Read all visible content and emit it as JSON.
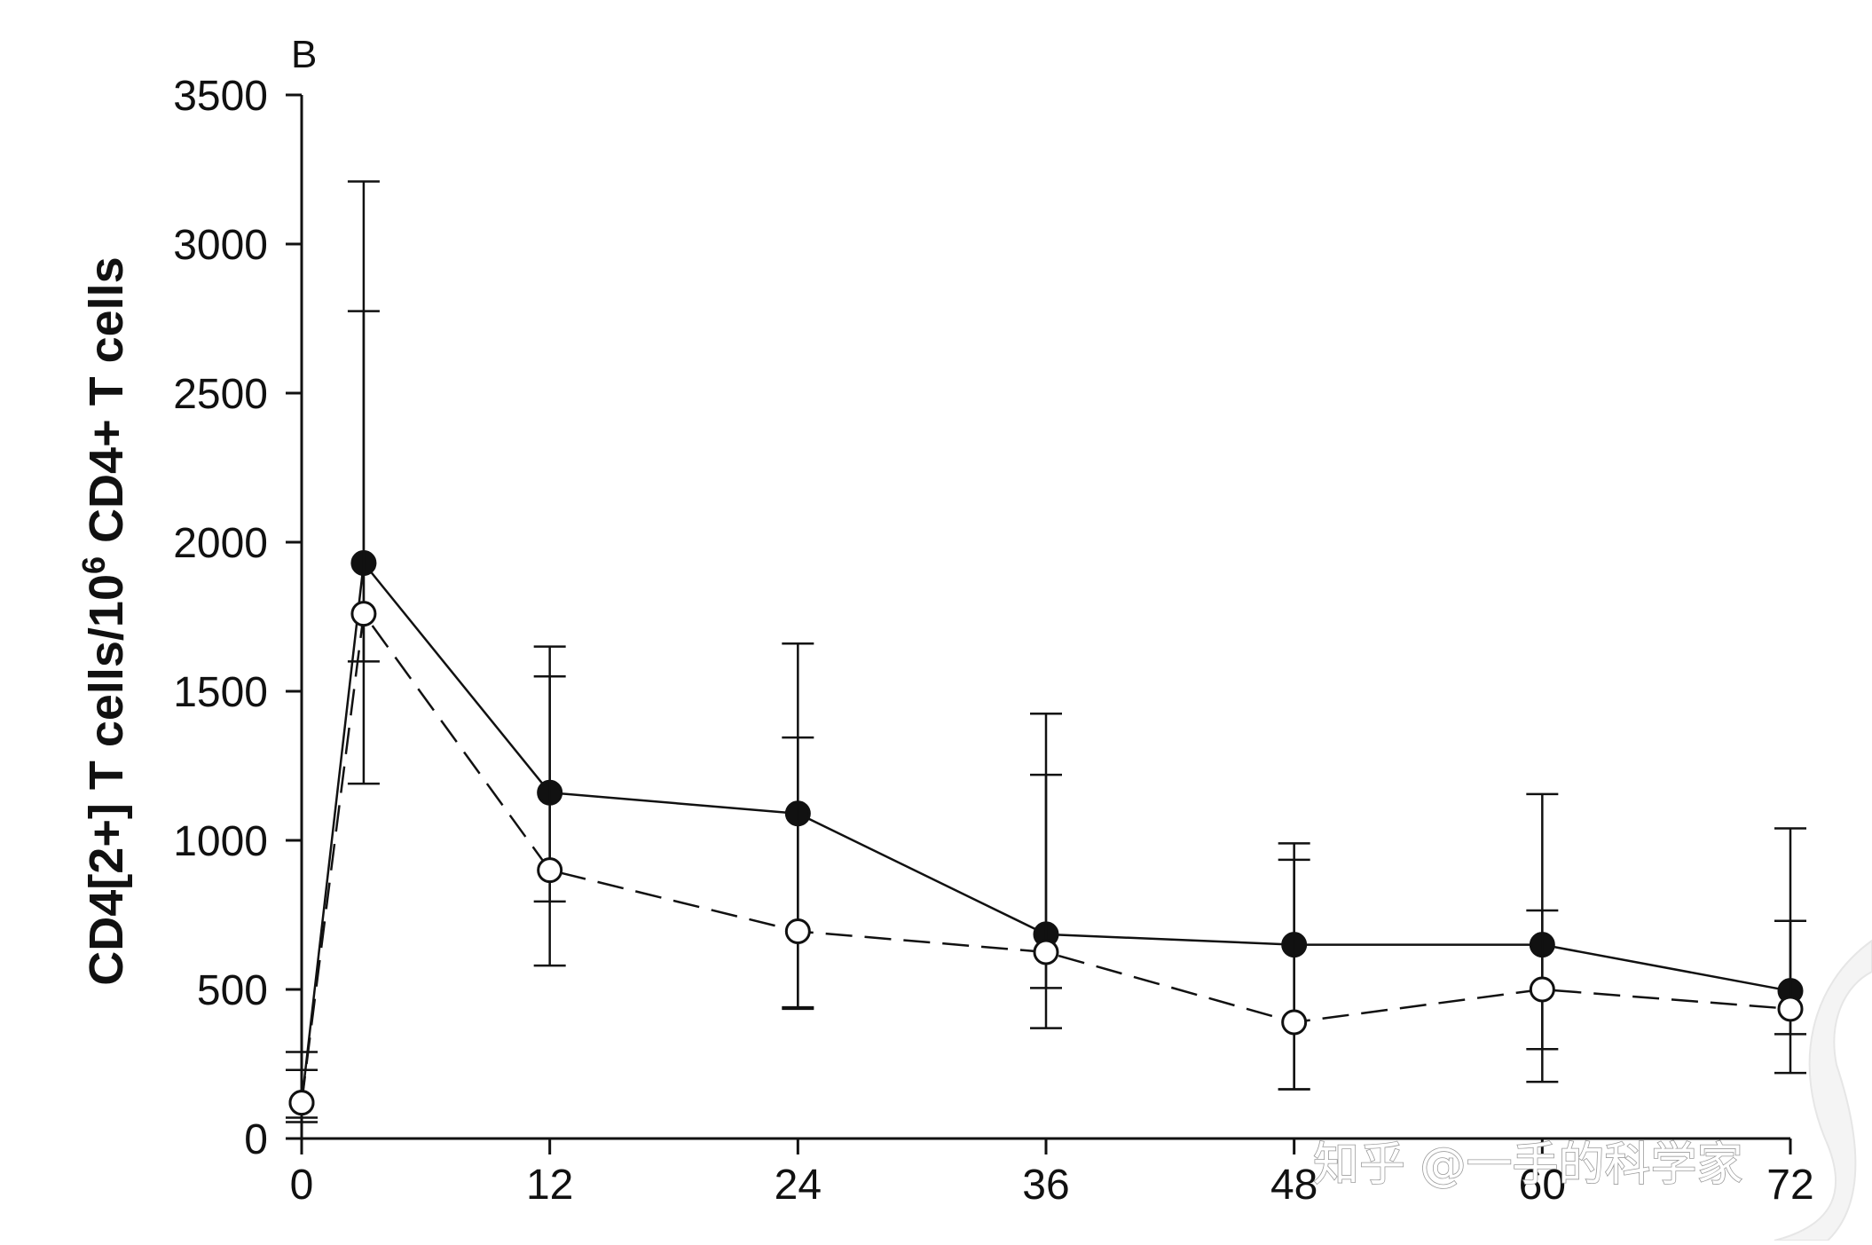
{
  "panel_label": "B",
  "watermark": "知乎 @一手的科学家",
  "chart_data": {
    "type": "line",
    "title": "",
    "xlabel": "",
    "ylabel": {
      "prefix": "CD4[2+] T cells/10",
      "superscript": "6",
      "suffix": " CD4+ T cells"
    },
    "xlim": [
      0,
      72
    ],
    "ylim": [
      0,
      3500
    ],
    "x_ticks": [
      0,
      12,
      24,
      36,
      48,
      60,
      72
    ],
    "x_tick_labels": [
      "0",
      "12",
      "24",
      "36",
      "48",
      "60",
      "72"
    ],
    "y_ticks": [
      0,
      500,
      1000,
      1500,
      2000,
      2500,
      3000,
      3500
    ],
    "y_tick_labels": [
      "0",
      "500",
      "1000",
      "1500",
      "2000",
      "2500",
      "3000",
      "3500"
    ],
    "grid": false,
    "series": [
      {
        "marker": "filled-circle",
        "line_style": "solid",
        "x": [
          0,
          3,
          12,
          24,
          36,
          48,
          60,
          72
        ],
        "y": [
          120,
          1930,
          1160,
          1090,
          685,
          650,
          650,
          495
        ],
        "error_upper": [
          290,
          3210,
          1650,
          1660,
          1425,
          990,
          1155,
          1040
        ],
        "error_lower": [
          55,
          1190,
          580,
          435,
          370,
          165,
          190,
          220
        ]
      },
      {
        "marker": "open-circle",
        "line_style": "dashed",
        "x": [
          0,
          3,
          12,
          24,
          36,
          48,
          60,
          72
        ],
        "y": [
          120,
          1760,
          900,
          695,
          625,
          390,
          500,
          435
        ],
        "error_upper": [
          230,
          2775,
          1550,
          1345,
          1220,
          935,
          765,
          730
        ],
        "error_lower": [
          70,
          1600,
          795,
          440,
          505,
          165,
          300,
          350
        ]
      }
    ]
  }
}
